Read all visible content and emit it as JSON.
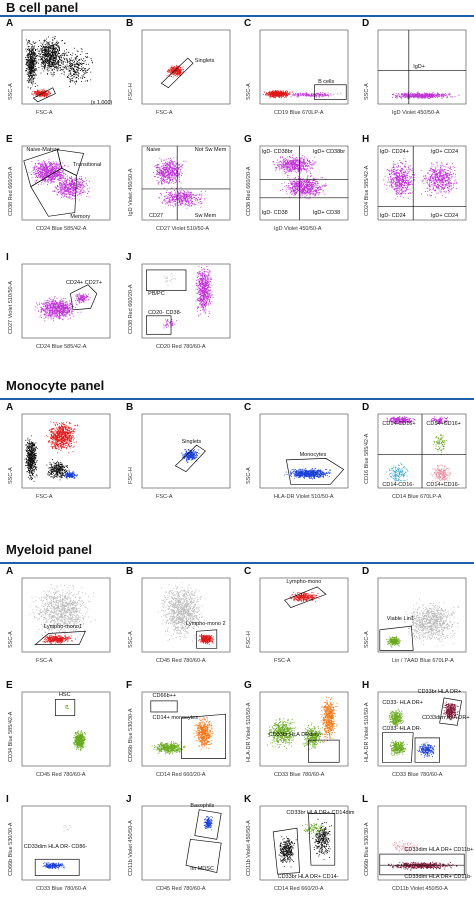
{
  "sections": [
    {
      "title": "B cell panel"
    },
    {
      "title": "Monocyte panel"
    },
    {
      "title": "Myeloid panel"
    }
  ],
  "panels": [
    {
      "letter": "A",
      "xlabel": "FSC-A",
      "ylabel": "SSC-A",
      "gates": [
        "(x 1,000)"
      ]
    },
    {
      "letter": "B",
      "xlabel": "FSC-A",
      "ylabel": "FSC-H",
      "gates": [
        "Singlets"
      ]
    },
    {
      "letter": "C",
      "xlabel": "CD19 Blue 670LP-A",
      "ylabel": "SSC-A",
      "gates": [
        "B cells"
      ]
    },
    {
      "letter": "D",
      "xlabel": "IgD Violet 450/50-A",
      "ylabel": "SSC-A",
      "gates": [
        "IgD+"
      ]
    },
    {
      "letter": "E",
      "xlabel": "CD24 Blue 585/42-A",
      "ylabel": "CD38 Red 660/20-A",
      "gates": [
        "Naive-Mature",
        "Transitional",
        "Memory"
      ]
    },
    {
      "letter": "F",
      "xlabel": "CD27 Violet 510/50-A",
      "ylabel": "IgD Violet 450/50-A",
      "gates": [
        "Naive",
        "Not Sw Mem",
        "CD27",
        "Sw Mem"
      ]
    },
    {
      "letter": "G",
      "xlabel": "IgD Violet 450/50-A",
      "ylabel": "CD38 Red 660/20-A",
      "gates": [
        "IgD- CD38br",
        "IgD+ CD38br",
        "IgD- CD38",
        "IgD+ CD38"
      ]
    },
    {
      "letter": "H",
      "xlabel": "",
      "ylabel": "CD24 Blue 585/42-A",
      "gates": [
        "IgD- CD24+",
        "IgD+ CD24",
        "IgD- CD24",
        "IgD+ CD24"
      ]
    },
    {
      "letter": "I",
      "xlabel": "CD24 Blue 585/42-A",
      "ylabel": "CD27 Violet 510/50-A",
      "gates": [
        "CD24+ CD27+"
      ]
    },
    {
      "letter": "J",
      "xlabel": "CD20 Red 780/60-A",
      "ylabel": "CD38 Red 660/20-A",
      "gates": [
        "PB/PC",
        "CD20- CD38-"
      ]
    },
    {
      "letter": "A",
      "xlabel": "FSC-A",
      "ylabel": "SSC-A",
      "gates": []
    },
    {
      "letter": "B",
      "xlabel": "FSC-A",
      "ylabel": "FSC-H",
      "gates": [
        "Singlets"
      ]
    },
    {
      "letter": "C",
      "xlabel": "HLA-DR Violet 510/50-A",
      "ylabel": "SSC-A",
      "gates": [
        "Monocytes"
      ]
    },
    {
      "letter": "D",
      "xlabel": "CD14 Blue 670LP-A",
      "ylabel": "CD16 Blue 585/42-A",
      "gates": [
        "CD14-CD16+",
        "CD14+CD16+",
        "CD14-CD16-",
        "CD14+CD16-"
      ]
    },
    {
      "letter": "A",
      "xlabel": "FSC-A",
      "ylabel": "SSC-A",
      "gates": [
        "Lympho-mono1"
      ]
    },
    {
      "letter": "B",
      "xlabel": "CD45 Red 780/60-A",
      "ylabel": "SSC-A",
      "gates": [
        "Lympho-mono 2"
      ]
    },
    {
      "letter": "C",
      "xlabel": "FSC-A",
      "ylabel": "FSC-H",
      "gates": [
        "Lympho-mono"
      ]
    },
    {
      "letter": "D",
      "xlabel": "Lin / 7AAD Blue 670LP-A",
      "ylabel": "SSC-A",
      "gates": [
        "Viable Lin1-"
      ]
    },
    {
      "letter": "E",
      "xlabel": "CD45 Red 780/60-A",
      "ylabel": "CD34 Blue 585/42-A",
      "gates": [
        "HSC"
      ]
    },
    {
      "letter": "F",
      "xlabel": "CD14 Red 660/20-A",
      "ylabel": "CD66b Blue 530/30-A",
      "gates": [
        "CD66b++",
        "CD14+ monocytes"
      ]
    },
    {
      "letter": "G",
      "xlabel": "CD33 Blue 780/60-A",
      "ylabel": "HLA-DR Violet 510/50-A",
      "gates": [
        "CD33br HLA DRdim/-"
      ]
    },
    {
      "letter": "H",
      "xlabel": "CD33 Blue 780/60-A",
      "ylabel": "HLA-DR Violet 510/50-A",
      "gates": [
        "CD33br HLA DR+",
        "CD33- HLA DR+",
        "CD33dim HLA DR+",
        "CD33- HLA DR-"
      ]
    },
    {
      "letter": "I",
      "xlabel": "CD33 Blue 780/60-A",
      "ylabel": "CD66b Blue 530/30-A",
      "gates": [
        "CD33dim HLA DR- CD86-"
      ]
    },
    {
      "letter": "J",
      "xlabel": "CD45 Red 780/60-A",
      "ylabel": "CD11b Violet 450/50-A",
      "gates": [
        "Basophils",
        "lm MDSC"
      ]
    },
    {
      "letter": "K",
      "xlabel": "CD14 Red 660/20-A",
      "ylabel": "CD11b Violet 450/50-A",
      "gates": [
        "CD33br HLA DR+ CD14dim",
        "CD33br HLA DR+ CD14-"
      ]
    },
    {
      "letter": "L",
      "xlabel": "CD11b Violet 450/50-A",
      "ylabel": "CD66b Blue 530/30-A",
      "gates": [
        "CD33dim HLA DR+ CD11b+",
        "CD33dim HLA DR+ CD11b-"
      ]
    }
  ],
  "colors": {
    "rule": "#1f5ea8",
    "purple": "#c032d8",
    "red": "#e01818",
    "blue": "#1a3fd8",
    "black": "#111111",
    "green": "#6aaa20",
    "orange": "#f07818",
    "grey": "#b8b8b8",
    "cyan": "#38a8d8",
    "pink": "#e890a0",
    "darkred": "#801838"
  }
}
